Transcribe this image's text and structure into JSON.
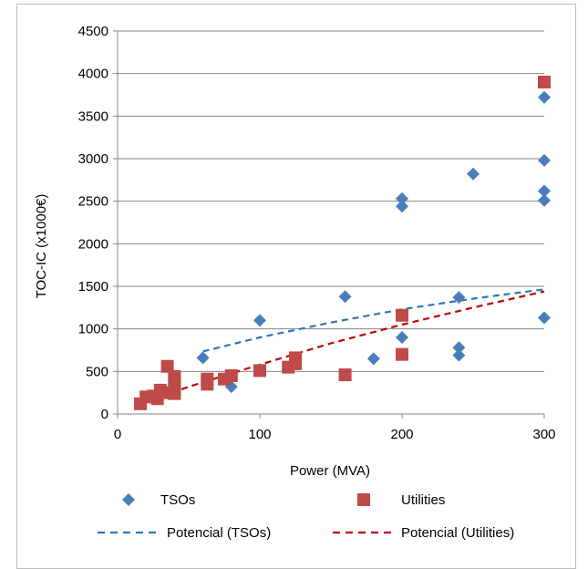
{
  "chart_data": {
    "type": "scatter",
    "xlabel": "Power (MVA)",
    "ylabel": "TOC-IC (x1000€)",
    "xlim": [
      0,
      300
    ],
    "ylim": [
      0,
      4500
    ],
    "x_ticks": [
      "0",
      "100",
      "200",
      "300"
    ],
    "y_ticks": [
      "0",
      "500",
      "1000",
      "1500",
      "2000",
      "2500",
      "3000",
      "3500",
      "4000",
      "4500"
    ],
    "grid": "horizontal",
    "legend_position": "bottom",
    "series": [
      {
        "name": "TSOs",
        "marker": "diamond",
        "color": "#4a7ebb",
        "points": [
          [
            60,
            660
          ],
          [
            80,
            320
          ],
          [
            100,
            1100
          ],
          [
            160,
            1380
          ],
          [
            180,
            650
          ],
          [
            200,
            2530
          ],
          [
            200,
            2440
          ],
          [
            200,
            900
          ],
          [
            240,
            1370
          ],
          [
            240,
            780
          ],
          [
            240,
            690
          ],
          [
            250,
            2820
          ],
          [
            300,
            3720
          ],
          [
            300,
            2980
          ],
          [
            300,
            2620
          ],
          [
            300,
            2510
          ],
          [
            300,
            1130
          ]
        ]
      },
      {
        "name": "Utilities",
        "marker": "square",
        "color": "#be4b48",
        "points": [
          [
            16,
            120
          ],
          [
            20,
            200
          ],
          [
            25,
            210
          ],
          [
            28,
            180
          ],
          [
            30,
            280
          ],
          [
            32,
            250
          ],
          [
            35,
            560
          ],
          [
            40,
            440
          ],
          [
            40,
            390
          ],
          [
            40,
            300
          ],
          [
            40,
            240
          ],
          [
            63,
            410
          ],
          [
            63,
            350
          ],
          [
            75,
            410
          ],
          [
            80,
            450
          ],
          [
            100,
            510
          ],
          [
            120,
            550
          ],
          [
            125,
            660
          ],
          [
            125,
            590
          ],
          [
            160,
            460
          ],
          [
            200,
            1160
          ],
          [
            200,
            700
          ],
          [
            300,
            3900
          ]
        ]
      }
    ],
    "trendlines": [
      {
        "name": "Potencial (TSOs)",
        "type": "power",
        "color": "#2e75b6",
        "dash": "dashed",
        "x_range": [
          60,
          300
        ],
        "points": [
          [
            60,
            735
          ],
          [
            100,
            900
          ],
          [
            150,
            1075
          ],
          [
            200,
            1230
          ],
          [
            250,
            1355
          ],
          [
            300,
            1465
          ]
        ]
      },
      {
        "name": "Potencial (Utilities)",
        "type": "power",
        "color": "#c00000",
        "dash": "dashed",
        "x_range": [
          16,
          300
        ],
        "points": [
          [
            16,
            115
          ],
          [
            50,
            320
          ],
          [
            100,
            580
          ],
          [
            150,
            830
          ],
          [
            200,
            1050
          ],
          [
            250,
            1250
          ],
          [
            300,
            1440
          ]
        ]
      }
    ],
    "legend": [
      {
        "label": "TSOs",
        "symbol": "diamond",
        "color": "#4a7ebb"
      },
      {
        "label": "Utilities",
        "symbol": "square",
        "color": "#be4b48"
      },
      {
        "label": "Potencial (TSOs)",
        "symbol": "dashed-line",
        "color": "#2e75b6"
      },
      {
        "label": "Potencial (Utilities)",
        "symbol": "dashed-line",
        "color": "#c00000"
      }
    ]
  }
}
